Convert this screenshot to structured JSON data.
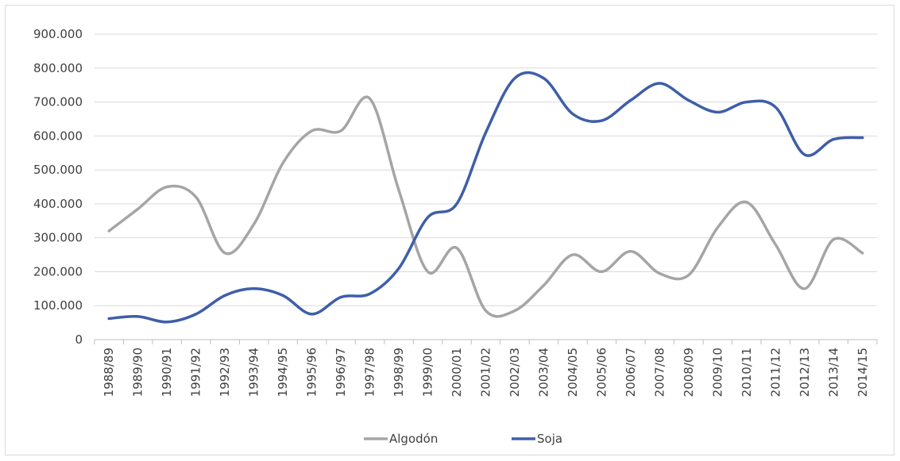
{
  "chart_data": {
    "type": "line",
    "categories": [
      "1988/89",
      "1989/90",
      "1990/91",
      "1991/92",
      "1992/93",
      "1993/94",
      "1994/95",
      "1995/96",
      "1996/97",
      "1997/98",
      "1998/99",
      "1999/00",
      "2000/01",
      "2001/02",
      "2002/03",
      "2003/04",
      "2004/05",
      "2005/06",
      "2006/07",
      "2007/08",
      "2008/09",
      "2009/10",
      "2010/11",
      "2011/12",
      "2012/13",
      "2013/14",
      "2014/15"
    ],
    "y_ticks": [
      "900.000",
      "800.000",
      "700.000",
      "600.000",
      "500.000",
      "400.000",
      "300.000",
      "200.000",
      "100.000",
      "0"
    ],
    "ylim": [
      0,
      900000
    ],
    "grid": true,
    "legend_position": "bottom",
    "series": [
      {
        "name": "Algodón",
        "color": "#a5a5a5",
        "values": [
          320000,
          385000,
          450000,
          420000,
          255000,
          340000,
          520000,
          615000,
          615000,
          710000,
          440000,
          200000,
          270000,
          85000,
          85000,
          160000,
          250000,
          200000,
          260000,
          195000,
          190000,
          330000,
          405000,
          280000,
          150000,
          295000,
          255000
        ]
      },
      {
        "name": "Soja",
        "color": "#3e5ea9",
        "values": [
          62000,
          68000,
          52000,
          75000,
          130000,
          150000,
          130000,
          75000,
          125000,
          135000,
          210000,
          360000,
          400000,
          610000,
          770000,
          770000,
          665000,
          645000,
          705000,
          755000,
          705000,
          670000,
          700000,
          685000,
          545000,
          590000,
          595000
        ]
      }
    ]
  }
}
